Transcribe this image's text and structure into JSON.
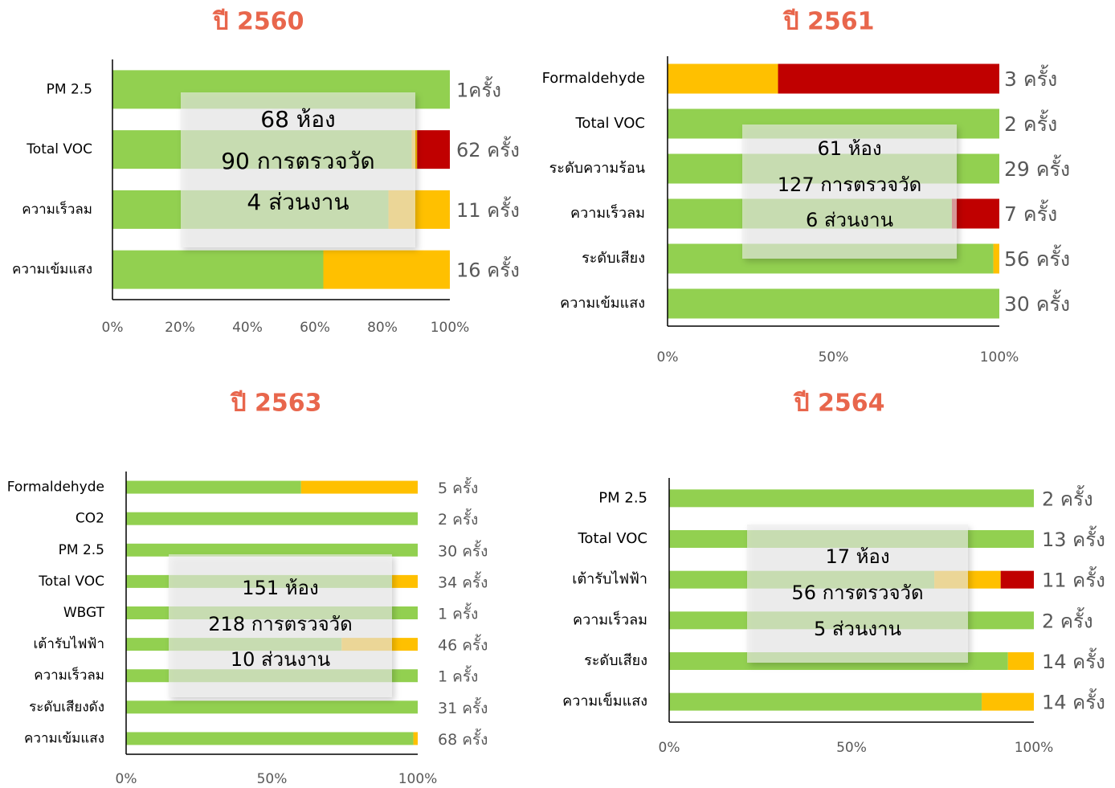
{
  "chart_data": [
    {
      "type": "bar",
      "orientation": "horizontal",
      "stacked": true,
      "title": "ปี 2560",
      "categories": [
        "PM 2.5",
        "Total VOC",
        "ความเร็วลม",
        "ความเข้มแสง"
      ],
      "series": [
        {
          "name": "green",
          "color": "#92d050",
          "values": [
            100,
            88.7,
            81.8,
            62.5
          ]
        },
        {
          "name": "yellow",
          "color": "#ffc000",
          "values": [
            0,
            1.6,
            18.2,
            37.5
          ]
        },
        {
          "name": "red",
          "color": "#c00000",
          "values": [
            0,
            9.7,
            0,
            0
          ]
        }
      ],
      "value_labels": [
        "1ครั้ง",
        "62 ครั้ง",
        "11 ครั้ง",
        "16 ครั้ง"
      ],
      "xlim": [
        0,
        100
      ],
      "xticks": [
        {
          "value": 0,
          "label": "0%"
        },
        {
          "value": 20,
          "label": "20%"
        },
        {
          "value": 40,
          "label": "40%"
        },
        {
          "value": 60,
          "label": "60%"
        },
        {
          "value": 80,
          "label": "80%"
        },
        {
          "value": 100,
          "label": "100%"
        }
      ],
      "annotations": [
        "68 ห้อง",
        "90 การตรวจวัด",
        "4 ส่วนงาน"
      ]
    },
    {
      "type": "bar",
      "orientation": "horizontal",
      "stacked": true,
      "title": "ปี 2561",
      "categories": [
        "Formaldehyde",
        "Total VOC",
        "ระดับความร้อน",
        "ความเร็วลม",
        "ระดับเสียง",
        "ความเข้มแสง"
      ],
      "series": [
        {
          "name": "green",
          "color": "#92d050",
          "values": [
            0,
            100,
            100,
            85.7,
            98.2,
            100
          ]
        },
        {
          "name": "yellow",
          "color": "#ffc000",
          "values": [
            33.3,
            0,
            0,
            0,
            1.8,
            0
          ]
        },
        {
          "name": "red",
          "color": "#c00000",
          "values": [
            66.7,
            0,
            0,
            14.3,
            0,
            0
          ]
        }
      ],
      "value_labels": [
        "3 ครั้ง",
        "2 ครั้ง",
        "29 ครั้ง",
        "7 ครั้ง",
        "56 ครั้ง",
        "30 ครั้ง"
      ],
      "xlim": [
        0,
        100
      ],
      "xticks": [
        {
          "value": 0,
          "label": "0%"
        },
        {
          "value": 50,
          "label": "50%"
        },
        {
          "value": 100,
          "label": "100%"
        }
      ],
      "annotations": [
        "61 ห้อง",
        "127 การตรวจวัด",
        "6 ส่วนงาน"
      ]
    },
    {
      "type": "bar",
      "orientation": "horizontal",
      "stacked": true,
      "title": "ปี 2563",
      "categories": [
        "Formaldehyde",
        "CO2",
        "PM 2.5",
        "Total VOC",
        "WBGT",
        "เต้ารับไฟฟ้า",
        "ความเร็วลม",
        "ระดับเสียงดัง",
        "ความเข้มแสง"
      ],
      "series": [
        {
          "name": "green",
          "color": "#92d050",
          "values": [
            60,
            100,
            100,
            91.2,
            100,
            73.9,
            100,
            100,
            98.5
          ]
        },
        {
          "name": "yellow",
          "color": "#ffc000",
          "values": [
            40,
            0,
            0,
            8.8,
            0,
            26.1,
            0,
            0,
            1.5
          ]
        },
        {
          "name": "red",
          "color": "#c00000",
          "values": [
            0,
            0,
            0,
            0,
            0,
            0,
            0,
            0,
            0
          ]
        }
      ],
      "value_labels": [
        "5 ครั้ง",
        "2 ครั้ง",
        "30 ครั้ง",
        "34 ครั้ง",
        "1 ครั้ง",
        "46 ครั้ง",
        "1 ครั้ง",
        "31 ครั้ง",
        "68 ครั้ง"
      ],
      "xlim": [
        0,
        100
      ],
      "xticks": [
        {
          "value": 0,
          "label": "0%"
        },
        {
          "value": 50,
          "label": "50%"
        },
        {
          "value": 100,
          "label": "100%"
        }
      ],
      "annotations": [
        "151 ห้อง",
        "218 การตรวจวัด",
        "10 ส่วนงาน"
      ]
    },
    {
      "type": "bar",
      "orientation": "horizontal",
      "stacked": true,
      "title": "ปี 2564",
      "categories": [
        "PM 2.5",
        "Total VOC",
        "เต้ารับไฟฟ้า",
        "ความเร็วลม",
        "ระดับเสียง",
        "ความเข็มแสง"
      ],
      "series": [
        {
          "name": "green",
          "color": "#92d050",
          "values": [
            100,
            100,
            72.7,
            100,
            92.9,
            85.7
          ]
        },
        {
          "name": "yellow",
          "color": "#ffc000",
          "values": [
            0,
            0,
            18.2,
            0,
            7.1,
            14.3
          ]
        },
        {
          "name": "red",
          "color": "#c00000",
          "values": [
            0,
            0,
            9.1,
            0,
            0,
            0
          ]
        }
      ],
      "value_labels": [
        "2 ครั้ง",
        "13 ครั้ง",
        "11 ครั้ง",
        "2 ครั้ง",
        "14 ครั้ง",
        "14 ครั้ง"
      ],
      "xlim": [
        0,
        100
      ],
      "xticks": [
        {
          "value": 0,
          "label": "0%"
        },
        {
          "value": 50,
          "label": "50%"
        },
        {
          "value": 100,
          "label": "100%"
        }
      ],
      "annotations": [
        "17 ห้อง",
        "56 การตรวจวัด",
        "5 ส่วนงาน"
      ]
    }
  ]
}
